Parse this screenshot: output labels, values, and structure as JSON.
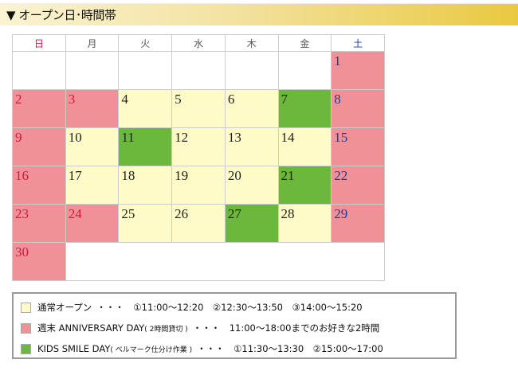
{
  "header": {
    "title": "▼ オープン日･時間帯"
  },
  "calendar": {
    "weekdays": [
      "日",
      "月",
      "火",
      "水",
      "木",
      "金",
      "土"
    ],
    "colors": {
      "open": "#fffbc8",
      "anniversary": "#ef9196",
      "kids": "#6cb83c",
      "sunday_text": "#d8163f",
      "saturday_text": "#1f3b99"
    },
    "weeks": [
      [
        {
          "type": "empty"
        },
        {
          "type": "empty"
        },
        {
          "type": "empty"
        },
        {
          "type": "empty"
        },
        {
          "type": "empty"
        },
        {
          "type": "empty"
        },
        {
          "day": "1",
          "type": "ann",
          "text": "blue"
        }
      ],
      [
        {
          "day": "2",
          "type": "ann",
          "text": "red"
        },
        {
          "day": "3",
          "type": "ann",
          "text": "red"
        },
        {
          "day": "4",
          "type": "open",
          "text": "dark"
        },
        {
          "day": "5",
          "type": "open",
          "text": "dark"
        },
        {
          "day": "6",
          "type": "open",
          "text": "dark"
        },
        {
          "day": "7",
          "type": "kids",
          "text": "dark"
        },
        {
          "day": "8",
          "type": "ann",
          "text": "blue"
        }
      ],
      [
        {
          "day": "9",
          "type": "ann",
          "text": "red"
        },
        {
          "day": "10",
          "type": "open",
          "text": "dark"
        },
        {
          "day": "11",
          "type": "kids",
          "text": "dark"
        },
        {
          "day": "12",
          "type": "open",
          "text": "dark"
        },
        {
          "day": "13",
          "type": "open",
          "text": "dark"
        },
        {
          "day": "14",
          "type": "open",
          "text": "dark"
        },
        {
          "day": "15",
          "type": "ann",
          "text": "blue"
        }
      ],
      [
        {
          "day": "16",
          "type": "ann",
          "text": "red"
        },
        {
          "day": "17",
          "type": "open",
          "text": "dark"
        },
        {
          "day": "18",
          "type": "open",
          "text": "dark"
        },
        {
          "day": "19",
          "type": "open",
          "text": "dark"
        },
        {
          "day": "20",
          "type": "open",
          "text": "dark"
        },
        {
          "day": "21",
          "type": "kids",
          "text": "dark"
        },
        {
          "day": "22",
          "type": "ann",
          "text": "blue"
        }
      ],
      [
        {
          "day": "23",
          "type": "ann",
          "text": "red"
        },
        {
          "day": "24",
          "type": "ann",
          "text": "red"
        },
        {
          "day": "25",
          "type": "open",
          "text": "dark"
        },
        {
          "day": "26",
          "type": "open",
          "text": "dark"
        },
        {
          "day": "27",
          "type": "kids",
          "text": "dark"
        },
        {
          "day": "28",
          "type": "open",
          "text": "dark"
        },
        {
          "day": "29",
          "type": "ann",
          "text": "blue"
        }
      ],
      [
        {
          "day": "30",
          "type": "ann",
          "text": "red"
        },
        {
          "type": "empty",
          "span": 6
        }
      ]
    ]
  },
  "legend": {
    "items": [
      {
        "label": "通常オープン",
        "note": "",
        "times": "・・・　①11:00～12:20　②12:30～13:50　③14:00～15:20",
        "color": "#fffbc8"
      },
      {
        "label": "週末 ANNIVERSARY DAY",
        "note": "( 2時間貸切 )",
        "times": "・・・　11:00～18:00までのお好きな2時間",
        "color": "#ef9196"
      },
      {
        "label": "KIDS SMILE DAY",
        "note": "( ベルマーク仕分け作業 )",
        "times": "・・・　①11:30～13:30　②15:00～17:00",
        "color": "#6cb83c"
      }
    ]
  }
}
